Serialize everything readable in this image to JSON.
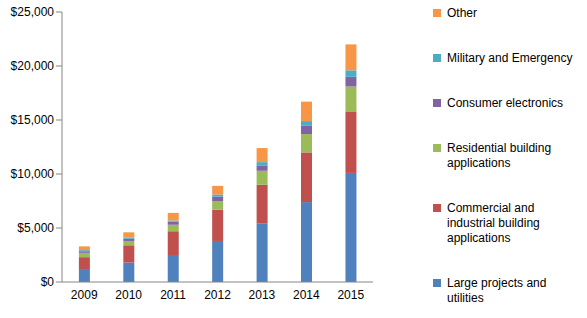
{
  "chart_data": {
    "type": "bar",
    "stacked": true,
    "grid": false,
    "legend": "right",
    "categories": [
      "2009",
      "2010",
      "2011",
      "2012",
      "2013",
      "2014",
      "2015"
    ],
    "ylim": [
      0,
      25000
    ],
    "yticks": [
      {
        "value": 0,
        "label": "$0"
      },
      {
        "value": 5000,
        "label": "$5,000"
      },
      {
        "value": 10000,
        "label": "$10,000"
      },
      {
        "value": 15000,
        "label": "$15,000"
      },
      {
        "value": 20000,
        "label": "$20,000"
      },
      {
        "value": 25000,
        "label": "$25,000"
      }
    ],
    "series": [
      {
        "name": "Large projects and utilities",
        "color": "#4f81bd",
        "values": [
          1200,
          1800,
          2500,
          3800,
          5400,
          7400,
          10100
        ]
      },
      {
        "name": "Commercial and industrial building applications",
        "color": "#c0504d",
        "values": [
          1100,
          1600,
          2200,
          2900,
          3600,
          4600,
          5700
        ]
      },
      {
        "name": "Residential building applications",
        "color": "#9bbb59",
        "values": [
          400,
          400,
          600,
          800,
          1300,
          1700,
          2300
        ]
      },
      {
        "name": "Consumer electronics",
        "color": "#8064a2",
        "values": [
          150,
          200,
          300,
          400,
          500,
          800,
          900
        ]
      },
      {
        "name": "Military and Emergency",
        "color": "#4bacc6",
        "values": [
          100,
          100,
          100,
          200,
          300,
          400,
          600
        ]
      },
      {
        "name": "Other",
        "color": "#f79646",
        "values": [
          350,
          500,
          700,
          800,
          1300,
          1800,
          2400
        ]
      }
    ]
  }
}
